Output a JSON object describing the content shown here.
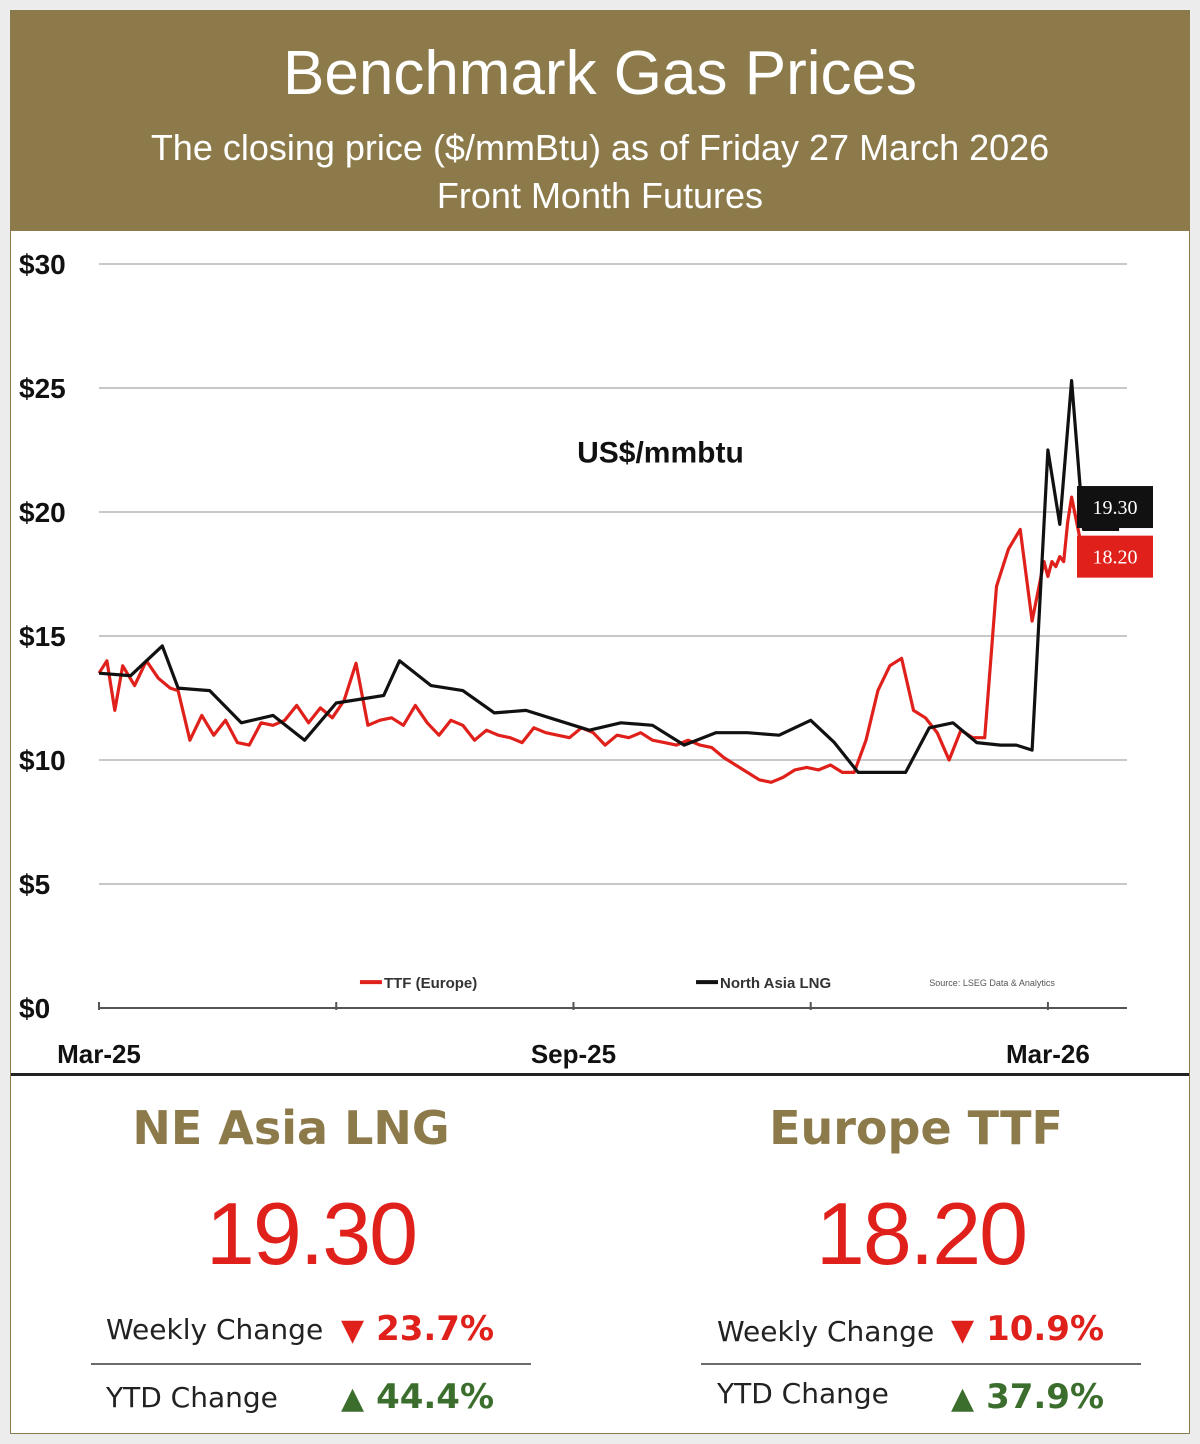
{
  "header": {
    "title": "Benchmark Gas Prices",
    "subtitle": "The closing price ($/mmBtu) as of Friday 27 March 2026",
    "subtitle2": "Front Month  Futures"
  },
  "chart_data": {
    "type": "line",
    "annotation": "US$/mmbtu",
    "ylim": [
      0,
      30
    ],
    "y_ticks": [
      "$30",
      "$25",
      "$20",
      "$15",
      "$10",
      "$5",
      "$0"
    ],
    "y_tick_values": [
      30,
      25,
      20,
      15,
      10,
      5,
      0
    ],
    "x_ticks": [
      "Mar-25",
      "Sep-25",
      "Mar-26"
    ],
    "x_tick_months": [
      0,
      6,
      12
    ],
    "xlim_months": [
      0,
      13
    ],
    "grid": true,
    "legend_placement": "bottom",
    "source": "Source: LSEG Data & Analytics",
    "series": [
      {
        "name": "TTF (Europe)",
        "color": "#e0201b",
        "end_label": "18.20",
        "x": [
          0,
          0.1,
          0.2,
          0.3,
          0.45,
          0.6,
          0.75,
          0.9,
          1.0,
          1.15,
          1.3,
          1.45,
          1.6,
          1.75,
          1.9,
          2.05,
          2.2,
          2.35,
          2.5,
          2.65,
          2.8,
          2.95,
          3.1,
          3.25,
          3.4,
          3.55,
          3.7,
          3.85,
          4.0,
          4.15,
          4.3,
          4.45,
          4.6,
          4.75,
          4.9,
          5.05,
          5.2,
          5.35,
          5.5,
          5.65,
          5.8,
          5.95,
          6.1,
          6.25,
          6.4,
          6.55,
          6.7,
          6.85,
          7.0,
          7.15,
          7.3,
          7.45,
          7.6,
          7.75,
          7.9,
          8.05,
          8.2,
          8.35,
          8.5,
          8.65,
          8.8,
          8.95,
          9.1,
          9.25,
          9.4,
          9.55,
          9.7,
          9.85,
          10.0,
          10.15,
          10.3,
          10.45,
          10.6,
          10.75,
          10.9,
          11.05,
          11.2,
          11.35,
          11.5,
          11.65,
          11.8,
          11.95,
          12.0,
          12.05,
          12.1,
          12.15,
          12.2,
          12.25,
          12.3,
          12.35,
          12.4,
          12.45,
          12.5,
          12.55,
          12.6,
          12.65,
          12.7,
          12.75,
          12.8,
          12.85,
          12.9
        ],
        "values": [
          13.5,
          14.0,
          12.0,
          13.8,
          13.0,
          14.0,
          13.3,
          12.9,
          12.8,
          10.8,
          11.8,
          11.0,
          11.6,
          10.7,
          10.6,
          11.5,
          11.4,
          11.6,
          12.2,
          11.5,
          12.1,
          11.7,
          12.4,
          13.9,
          11.4,
          11.6,
          11.7,
          11.4,
          12.2,
          11.5,
          11.0,
          11.6,
          11.4,
          10.8,
          11.2,
          11.0,
          10.9,
          10.7,
          11.3,
          11.1,
          11.0,
          10.9,
          11.3,
          11.1,
          10.6,
          11.0,
          10.9,
          11.1,
          10.8,
          10.7,
          10.6,
          10.8,
          10.6,
          10.5,
          10.1,
          9.8,
          9.5,
          9.2,
          9.1,
          9.3,
          9.6,
          9.7,
          9.6,
          9.8,
          9.5,
          9.5,
          10.8,
          12.8,
          13.8,
          14.1,
          12.0,
          11.7,
          11.1,
          10.0,
          11.2,
          10.9,
          10.9,
          17.0,
          18.5,
          19.3,
          15.6,
          18.0,
          17.4,
          18.0,
          17.8,
          18.2,
          18.0,
          19.6,
          20.6,
          19.8,
          19.0,
          17.7,
          18.8,
          18.2,
          18.2,
          18.2,
          18.2,
          18.2,
          18.2,
          18.2,
          18.2
        ]
      },
      {
        "name": "North Asia LNG",
        "color": "#111111",
        "end_label": "19.30",
        "x": [
          0,
          0.4,
          0.8,
          1.0,
          1.4,
          1.8,
          2.2,
          2.6,
          3.0,
          3.4,
          3.6,
          3.8,
          4.2,
          4.6,
          5.0,
          5.4,
          5.8,
          6.2,
          6.6,
          7.0,
          7.4,
          7.8,
          8.2,
          8.6,
          9.0,
          9.3,
          9.6,
          9.9,
          10.2,
          10.5,
          10.8,
          11.1,
          11.4,
          11.6,
          11.8,
          12.0,
          12.15,
          12.3,
          12.45,
          12.6,
          12.75,
          12.9
        ],
        "values": [
          13.5,
          13.4,
          14.6,
          12.9,
          12.8,
          11.5,
          11.8,
          10.8,
          12.3,
          12.5,
          12.6,
          14.0,
          13.0,
          12.8,
          11.9,
          12.0,
          11.6,
          11.2,
          11.5,
          11.4,
          10.6,
          11.1,
          11.1,
          11.0,
          11.6,
          10.7,
          9.5,
          9.5,
          9.5,
          11.3,
          11.5,
          10.7,
          10.6,
          10.6,
          10.4,
          22.5,
          19.5,
          25.3,
          19.3,
          19.3,
          19.3,
          19.3
        ]
      }
    ]
  },
  "panels": [
    {
      "title": "NE Asia LNG",
      "value": "19.30",
      "weekly_label": "Weekly Change",
      "weekly_value": "23.7%",
      "weekly_arrow": "▼",
      "ytd_label": "YTD Change",
      "ytd_value": "44.4%",
      "ytd_arrow": "▲"
    },
    {
      "title": "Europe TTF",
      "value": "18.20",
      "weekly_label": "Weekly Change",
      "weekly_value": "10.9%",
      "weekly_arrow": "▼",
      "ytd_label": "YTD Change",
      "ytd_value": "37.9%",
      "ytd_arrow": "▲"
    }
  ]
}
